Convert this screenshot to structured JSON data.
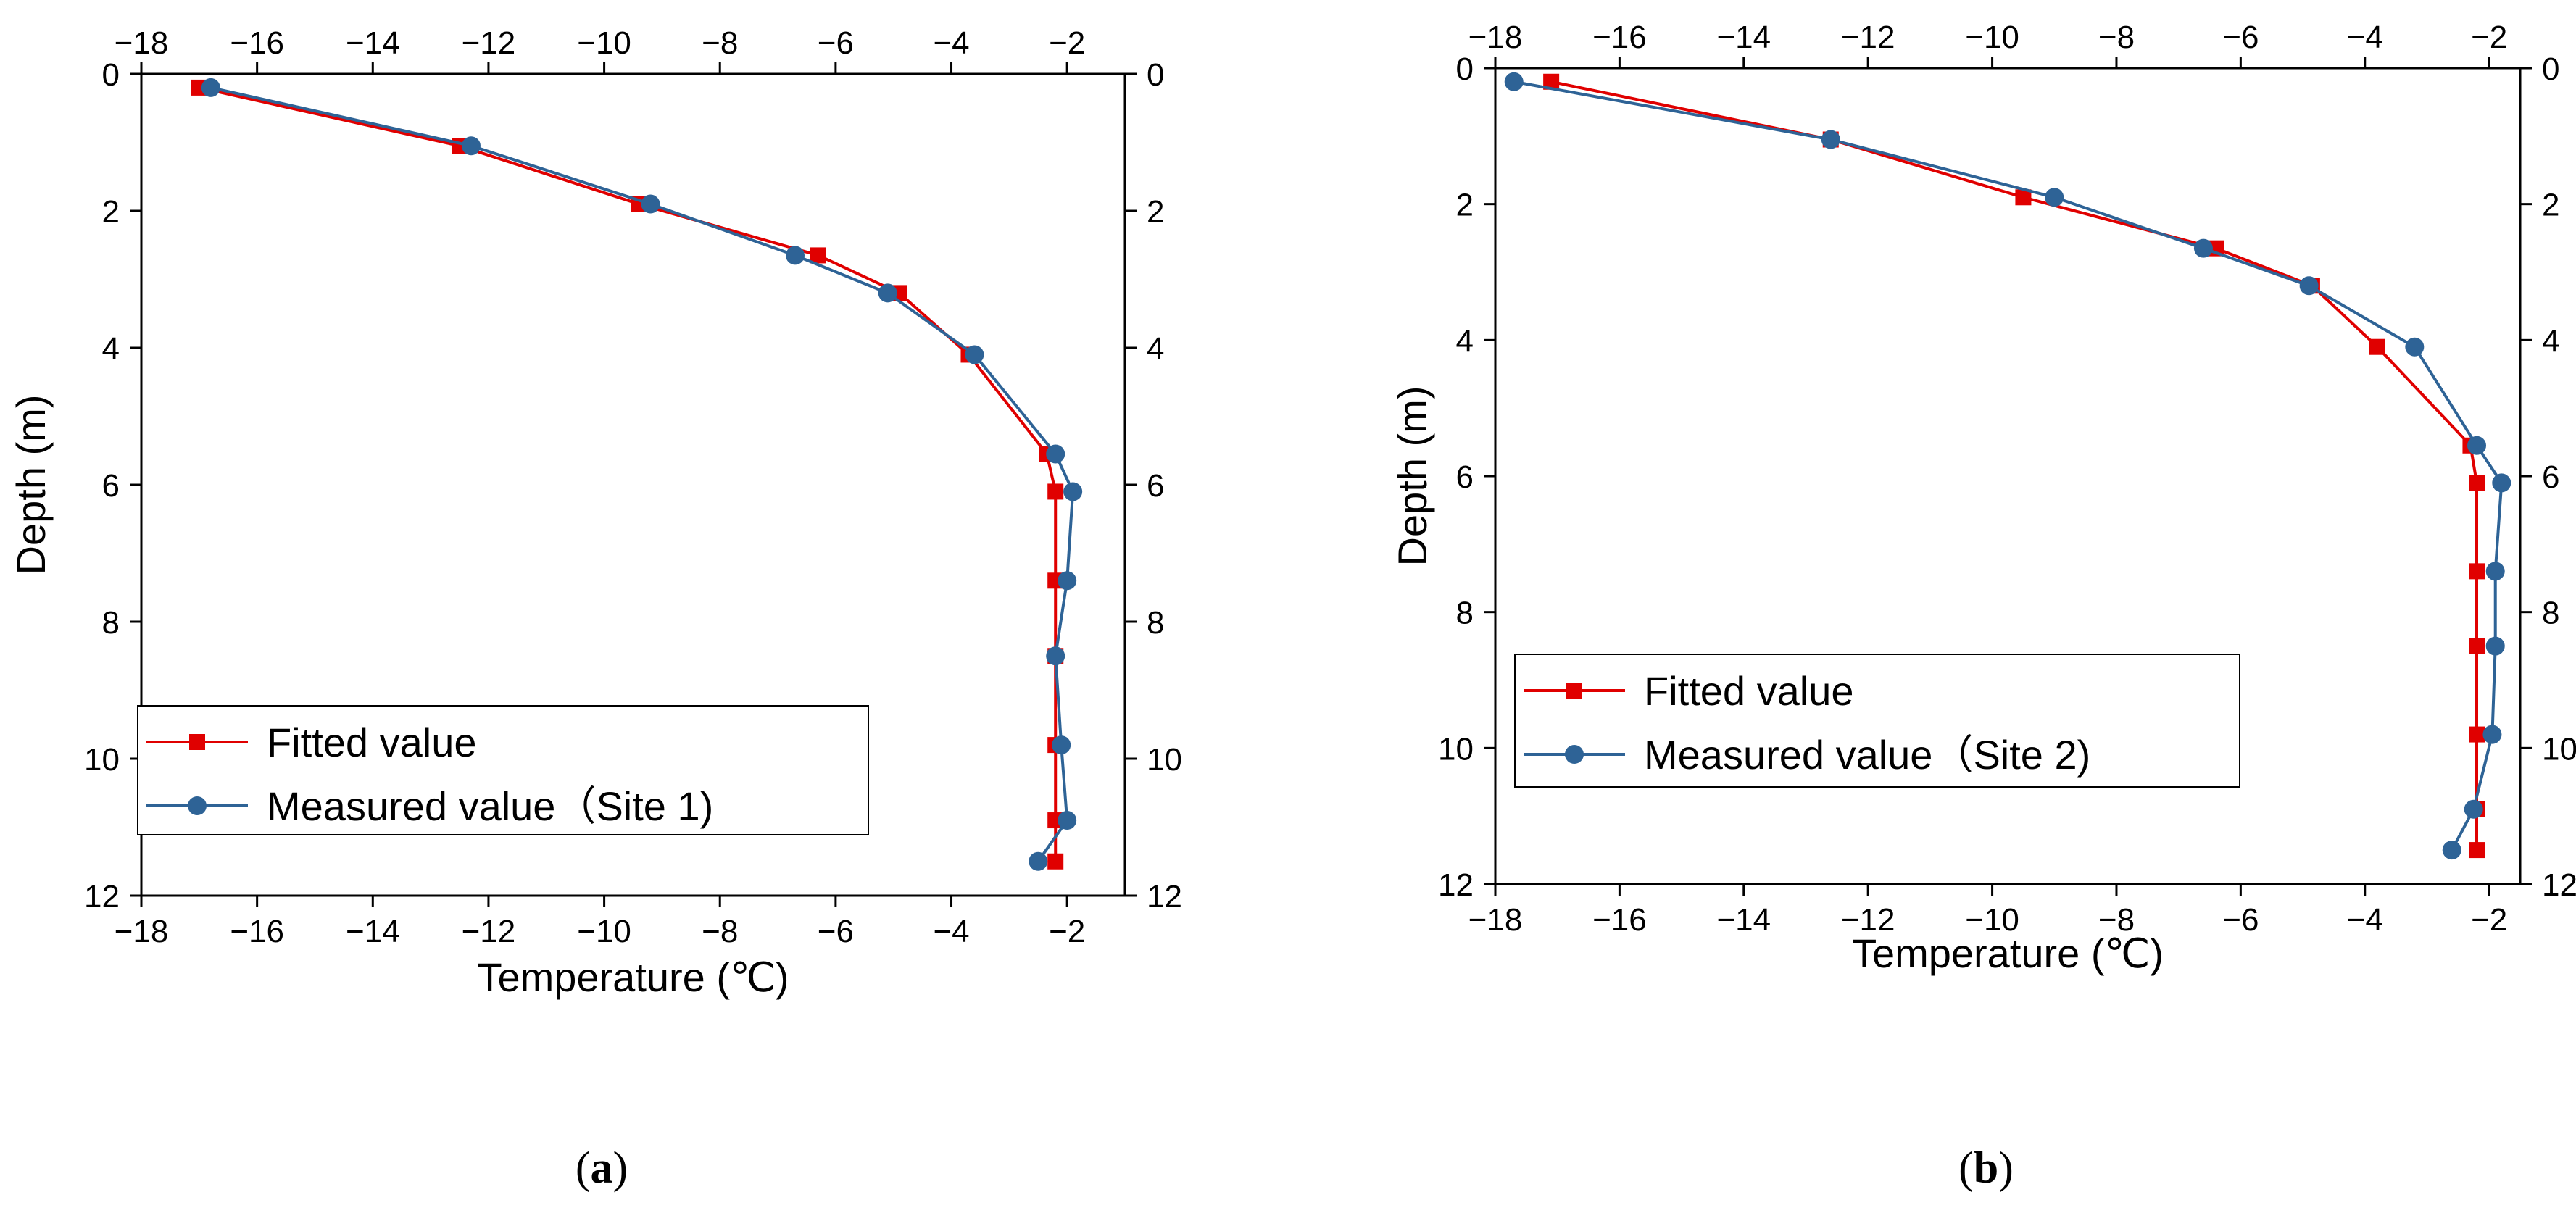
{
  "chart_data": [
    {
      "type": "line",
      "panel_label": "(a)",
      "panel_letter": "a",
      "xlabel": "Temperature (℃)",
      "ylabel": "Depth (m)",
      "xlim": [
        -18,
        -1
      ],
      "ylim": [
        0,
        12
      ],
      "x_ticks": [
        -18,
        -16,
        -14,
        -12,
        -10,
        -8,
        -6,
        -4,
        -2
      ],
      "y_ticks": [
        0,
        2,
        4,
        6,
        8,
        10,
        12
      ],
      "y_inverted": true,
      "mirror_axes": true,
      "legend_position": "bottom-left",
      "series": [
        {
          "name": "Fitted value",
          "color": "#e00000",
          "marker": "square",
          "x": [
            -17.0,
            -12.5,
            -9.4,
            -6.3,
            -4.9,
            -3.7,
            -2.35,
            -2.2,
            -2.2,
            -2.2,
            -2.2,
            -2.2,
            -2.2
          ],
          "y": [
            0.2,
            1.05,
            1.9,
            2.65,
            3.2,
            4.1,
            5.55,
            6.1,
            7.4,
            8.5,
            9.8,
            10.9,
            11.5
          ]
        },
        {
          "name": "Measured value（Site 1)",
          "color": "#2e6396",
          "marker": "circle",
          "x": [
            -16.8,
            -12.3,
            -9.2,
            -6.7,
            -5.1,
            -3.6,
            -2.2,
            -1.9,
            -2.0,
            -2.2,
            -2.1,
            -2.0,
            -2.5
          ],
          "y": [
            0.2,
            1.05,
            1.9,
            2.65,
            3.2,
            4.1,
            5.55,
            6.1,
            7.4,
            8.5,
            9.8,
            10.9,
            11.5
          ]
        }
      ]
    },
    {
      "type": "line",
      "panel_label": "(b)",
      "panel_letter": "b",
      "xlabel": "Temperature (℃)",
      "ylabel": "Depth (m)",
      "xlim": [
        -18,
        -1.5
      ],
      "ylim": [
        0,
        12
      ],
      "x_ticks": [
        -18,
        -16,
        -14,
        -12,
        -10,
        -8,
        -6,
        -4,
        -2
      ],
      "y_ticks": [
        0,
        2,
        4,
        6,
        8,
        10,
        12
      ],
      "y_inverted": true,
      "mirror_axes": true,
      "legend_position": "middle-right",
      "series": [
        {
          "name": "Fitted value",
          "color": "#e00000",
          "marker": "square",
          "x": [
            -17.1,
            -12.6,
            -9.5,
            -6.4,
            -4.85,
            -3.8,
            -2.3,
            -2.2,
            -2.2,
            -2.2,
            -2.2,
            -2.2,
            -2.2
          ],
          "y": [
            0.2,
            1.05,
            1.9,
            2.65,
            3.2,
            4.1,
            5.55,
            6.1,
            7.4,
            8.5,
            9.8,
            10.9,
            11.5
          ]
        },
        {
          "name": "Measured value（Site 2)",
          "color": "#2e6396",
          "marker": "circle",
          "x": [
            -17.7,
            -12.6,
            -9.0,
            -6.6,
            -4.9,
            -3.2,
            -2.2,
            -1.8,
            -1.9,
            -1.9,
            -1.95,
            -2.25,
            -2.6
          ],
          "y": [
            0.2,
            1.05,
            1.9,
            2.65,
            3.2,
            4.1,
            5.55,
            6.1,
            7.4,
            8.5,
            9.8,
            10.9,
            11.5
          ]
        }
      ]
    }
  ]
}
